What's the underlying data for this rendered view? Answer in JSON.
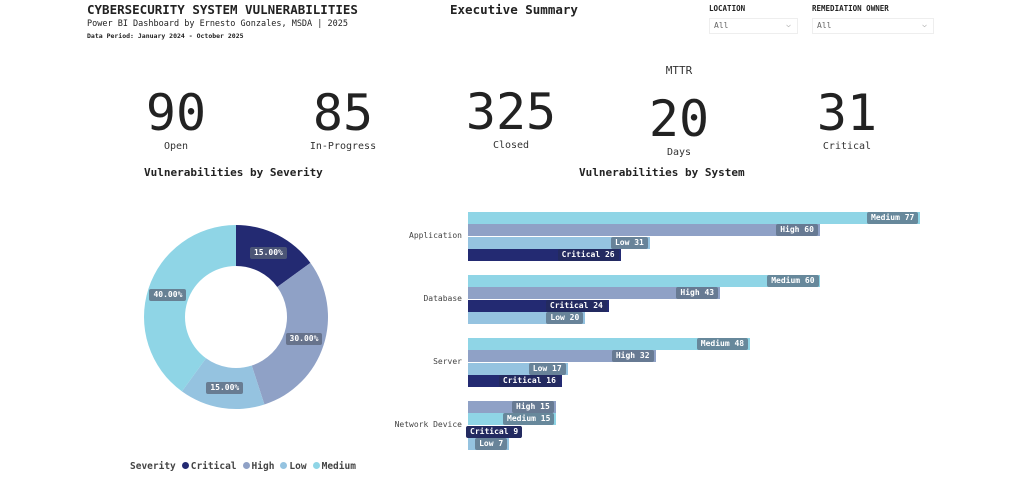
{
  "header": {
    "title": "CYBERSECURITY SYSTEM VULNERABILITIES",
    "subtitle": "Power BI Dashboard by Ernesto Gonzales, MSDA | 2025",
    "period": "Data Period: January 2024 - October 2025",
    "center_title": "Executive Summary"
  },
  "filters": [
    {
      "label": "LOCATION",
      "value": "All"
    },
    {
      "label": "REMEDIATION OWNER",
      "value": "All"
    }
  ],
  "kpis": [
    {
      "value": "90",
      "label": "Open"
    },
    {
      "value": "85",
      "label": "In-Progress"
    },
    {
      "value": "325",
      "label": "Closed"
    },
    {
      "value": "20",
      "label": "Days",
      "heading": "MTTR"
    },
    {
      "value": "31",
      "label": "Critical"
    }
  ],
  "colors": {
    "Critical": "#232a72",
    "High": "#8fa1c6",
    "Low": "#95c3e0",
    "Medium": "#8fd5e6"
  },
  "chart_data": [
    {
      "type": "pie",
      "title": "Vulnerabilities by Severity",
      "donut": true,
      "legend_title": "Severity",
      "legend_position": "bottom-left",
      "categories": [
        "Critical",
        "High",
        "Low",
        "Medium"
      ],
      "values": [
        15.0,
        30.0,
        15.0,
        40.0
      ],
      "labels": [
        "15.00%",
        "30.00%",
        "15.00%",
        "40.00%"
      ]
    },
    {
      "type": "bar",
      "orientation": "horizontal",
      "title": "Vulnerabilities by System",
      "groups": [
        {
          "name": "Application",
          "bars": [
            {
              "s": "Medium",
              "v": 77
            },
            {
              "s": "High",
              "v": 60
            },
            {
              "s": "Low",
              "v": 31
            },
            {
              "s": "Critical",
              "v": 26
            }
          ]
        },
        {
          "name": "Database",
          "bars": [
            {
              "s": "Medium",
              "v": 60
            },
            {
              "s": "High",
              "v": 43
            },
            {
              "s": "Critical",
              "v": 24
            },
            {
              "s": "Low",
              "v": 20
            }
          ]
        },
        {
          "name": "Server",
          "bars": [
            {
              "s": "Medium",
              "v": 48
            },
            {
              "s": "High",
              "v": 32
            },
            {
              "s": "Low",
              "v": 17
            },
            {
              "s": "Critical",
              "v": 16
            }
          ]
        },
        {
          "name": "Network Device",
          "bars": [
            {
              "s": "High",
              "v": 15
            },
            {
              "s": "Medium",
              "v": 15
            },
            {
              "s": "Critical",
              "v": 9
            },
            {
              "s": "Low",
              "v": 7
            }
          ]
        }
      ]
    }
  ]
}
